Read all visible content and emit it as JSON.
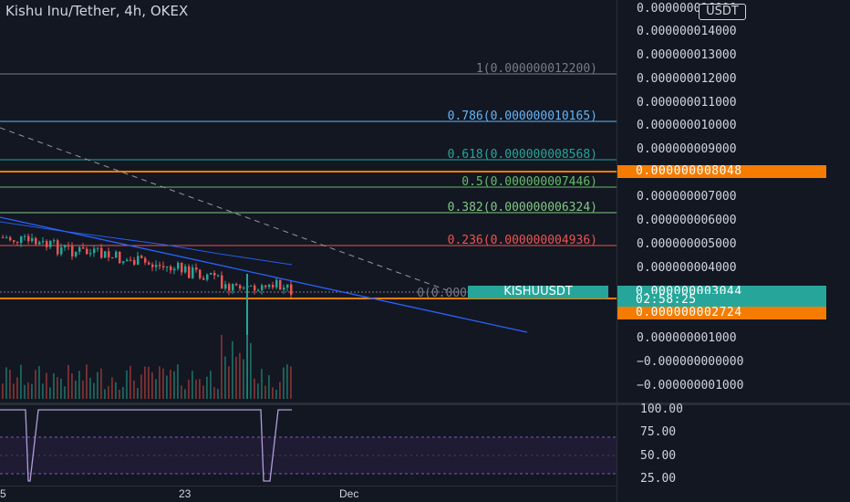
{
  "header": {
    "title": "Kishu Inu/Tether, 4h, OKEX"
  },
  "unit_button": {
    "label": "USDT"
  },
  "colors": {
    "background": "#131722",
    "axis_text": "#d1d4dc",
    "orange": "#f57c00",
    "teal": "#26a69a",
    "red": "#ef5350",
    "blue": "#2962ff",
    "grey_line": "#787b86"
  },
  "price_axis": {
    "labels": [
      "0.000000016000",
      "0.000000014000",
      "0.000000013000",
      "0.000000012000",
      "0.000000011000",
      "0.000000010000",
      "0.000000009000",
      "0.000000007000",
      "0.000000006000",
      "0.000000005000",
      "0.000000004000",
      "0.000000001000",
      "−0.000000000000",
      "−0.000000001000"
    ],
    "tags": {
      "orange_high": "0.000000008048",
      "last_price": "0.000000003044",
      "countdown": "02:58:25",
      "orange_low": "0.000000002724"
    }
  },
  "symbol_tag": "KISHUUSDT",
  "fib_levels": [
    {
      "label": "1(0.000000012200)",
      "color": "#787b86"
    },
    {
      "label": "0.786(0.000000010165)",
      "color": "#64b5f6"
    },
    {
      "label": "0.618(0.000000008568)",
      "color": "#26a69a"
    },
    {
      "label": "0.5(0.000000007446)",
      "color": "#66bb6a"
    },
    {
      "label": "0.382(0.000000006324)",
      "color": "#81c784"
    },
    {
      "label": "0.236(0.000000004936)",
      "color": "#ef5350"
    },
    {
      "label": "0(0.000",
      "color": "#787b86"
    }
  ],
  "rsi_axis": {
    "labels": [
      "100.00",
      "75.00",
      "50.00",
      "25.00"
    ]
  },
  "time_axis": {
    "labels": [
      "5",
      "23",
      "Dec"
    ]
  }
}
